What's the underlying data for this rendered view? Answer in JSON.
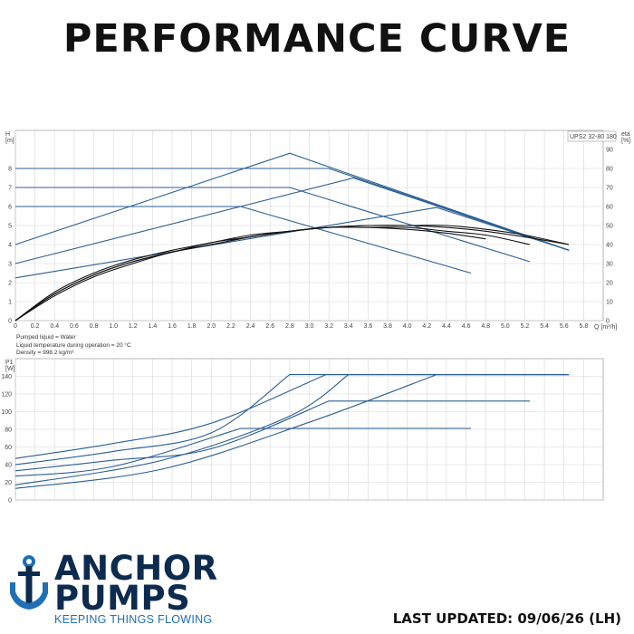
{
  "page": {
    "title": "PERFORMANCE CURVE"
  },
  "model_label": "UPS2 32-80 180",
  "liquid_info": [
    "Pumped liquid = Water",
    "Liquid temperature during operation = 20 °C",
    "Density = 998.2 kg/m³"
  ],
  "footer": {
    "brand_line1": "ANCHOR",
    "brand_line2": "PUMPS",
    "tagline": "KEEPING THINGS FLOWING",
    "last_updated": "LAST UPDATED: 09/06/26 (LH)"
  },
  "colors": {
    "curve_blue": "#2a5f95",
    "efficiency_black": "#111111",
    "grid": "#d6d6d6",
    "brand_navy": "#0d2b4f",
    "brand_blue": "#1f6fb5"
  },
  "icons": {
    "logo": "anchor-icon"
  },
  "chart_data": [
    {
      "type": "line",
      "name": "head-curve",
      "xlabel": "Q [m³/h]",
      "ylabel_line1": "H",
      "ylabel_line2": "[m]",
      "y2label_line1": "eta",
      "y2label_line2": "[%]",
      "xlim": [
        0,
        6.0
      ],
      "ylim": [
        0,
        10
      ],
      "y2lim": [
        0,
        100
      ],
      "xticks": [
        "0",
        "0.2",
        "0.4",
        "0.6",
        "0.8",
        "1.0",
        "1.2",
        "1.4",
        "1.6",
        "1.8",
        "2.0",
        "2.2",
        "2.4",
        "2.6",
        "2.8",
        "3.0",
        "3.2",
        "3.4",
        "3.6",
        "3.8",
        "4.0",
        "4.2",
        "4.4",
        "4.6",
        "4.8",
        "5.0",
        "5.2",
        "5.4",
        "5.6",
        "5.8"
      ],
      "yticks": [
        "0",
        "1",
        "2",
        "3",
        "4",
        "5",
        "6",
        "7",
        "8"
      ],
      "y2ticks": [
        "0",
        "10",
        "20",
        "30",
        "40",
        "50",
        "60",
        "70",
        "80",
        "90"
      ],
      "grid": true,
      "series": [
        {
          "points": [
            [
              0,
              8
            ],
            [
              3.2,
              8
            ],
            [
              5.65,
              3.7
            ]
          ]
        },
        {
          "points": [
            [
              0,
              7
            ],
            [
              2.8,
              7
            ],
            [
              5.25,
              3.1
            ]
          ]
        },
        {
          "points": [
            [
              0,
              6
            ],
            [
              2.3,
              6
            ],
            [
              4.65,
              2.5
            ]
          ]
        },
        {
          "points": [
            [
              0,
              4
            ],
            [
              2.8,
              8.8
            ],
            [
              5.65,
              3.7
            ]
          ]
        },
        {
          "points": [
            [
              0,
              3
            ],
            [
              3.45,
              7.5
            ],
            [
              5.65,
              3.7
            ]
          ]
        },
        {
          "points": [
            [
              0,
              2.25
            ],
            [
              4.3,
              5.95
            ],
            [
              5.65,
              3.7
            ]
          ]
        }
      ],
      "efficiency_series": [
        {
          "points": [
            [
              0,
              0
            ],
            [
              0.4,
              14
            ],
            [
              0.8,
              24
            ],
            [
              1.2,
              31
            ],
            [
              1.6,
              36
            ],
            [
              2.0,
              40
            ],
            [
              2.4,
              44
            ],
            [
              2.8,
              47
            ],
            [
              3.2,
              49
            ],
            [
              3.6,
              49
            ],
            [
              4.0,
              48
            ],
            [
              4.4,
              46
            ],
            [
              4.8,
              43
            ]
          ]
        },
        {
          "points": [
            [
              0,
              0
            ],
            [
              0.4,
              15
            ],
            [
              0.8,
              25
            ],
            [
              1.2,
              32
            ],
            [
              1.6,
              37
            ],
            [
              2.0,
              41
            ],
            [
              2.4,
              45
            ],
            [
              2.8,
              47
            ],
            [
              3.2,
              49
            ],
            [
              3.6,
              49
            ],
            [
              4.0,
              49
            ],
            [
              4.4,
              47
            ],
            [
              4.8,
              45
            ],
            [
              5.25,
              40
            ]
          ]
        },
        {
          "points": [
            [
              0,
              0
            ],
            [
              0.4,
              14
            ],
            [
              0.8,
              24
            ],
            [
              1.2,
              31
            ],
            [
              1.6,
              36
            ],
            [
              2.0,
              41
            ],
            [
              2.4,
              44
            ],
            [
              2.8,
              47
            ],
            [
              3.2,
              49
            ],
            [
              3.6,
              50
            ],
            [
              4.0,
              50
            ],
            [
              4.4,
              49
            ],
            [
              4.8,
              47
            ],
            [
              5.2,
              44
            ],
            [
              5.65,
              40
            ]
          ]
        },
        {
          "points": [
            [
              0,
              0
            ],
            [
              0.4,
              13
            ],
            [
              0.8,
              23
            ],
            [
              1.2,
              30
            ],
            [
              1.6,
              36
            ],
            [
              2.0,
              40
            ],
            [
              2.4,
              44
            ],
            [
              2.8,
              47
            ],
            [
              3.2,
              49
            ],
            [
              3.6,
              50
            ],
            [
              4.0,
              50
            ],
            [
              4.4,
              50
            ],
            [
              4.8,
              48
            ],
            [
              5.2,
              45
            ],
            [
              5.65,
              40
            ]
          ]
        }
      ]
    },
    {
      "type": "line",
      "name": "power-curve",
      "ylabel_line1": "P1",
      "ylabel_line2": "[W]",
      "xlim": [
        0,
        6.0
      ],
      "ylim": [
        0,
        160
      ],
      "yticks": [
        "0",
        "20",
        "40",
        "60",
        "80",
        "100",
        "120",
        "140"
      ],
      "grid": true,
      "series": [
        {
          "points": [
            [
              0,
              47
            ],
            [
              1.0,
              64
            ],
            [
              2.0,
              87
            ],
            [
              3.17,
              142
            ],
            [
              5.65,
              142
            ]
          ]
        },
        {
          "points": [
            [
              0,
              40
            ],
            [
              1.0,
              55
            ],
            [
              2.0,
              76
            ],
            [
              2.8,
              142
            ],
            [
              5.65,
              142
            ]
          ]
        },
        {
          "points": [
            [
              0,
              33
            ],
            [
              1.0,
              45
            ],
            [
              2.0,
              58
            ],
            [
              3.2,
              112
            ],
            [
              5.25,
              112
            ]
          ]
        },
        {
          "points": [
            [
              0,
              27
            ],
            [
              1.0,
              38
            ],
            [
              2.3,
              81
            ],
            [
              4.65,
              81
            ]
          ]
        },
        {
          "points": [
            [
              0,
              17
            ],
            [
              1.5,
              45
            ],
            [
              2.8,
              95
            ],
            [
              3.4,
              142
            ],
            [
              5.65,
              142
            ]
          ]
        },
        {
          "points": [
            [
              0,
              13
            ],
            [
              1.5,
              35
            ],
            [
              3.0,
              88
            ],
            [
              4.3,
              142
            ],
            [
              5.65,
              142
            ]
          ]
        }
      ]
    }
  ]
}
